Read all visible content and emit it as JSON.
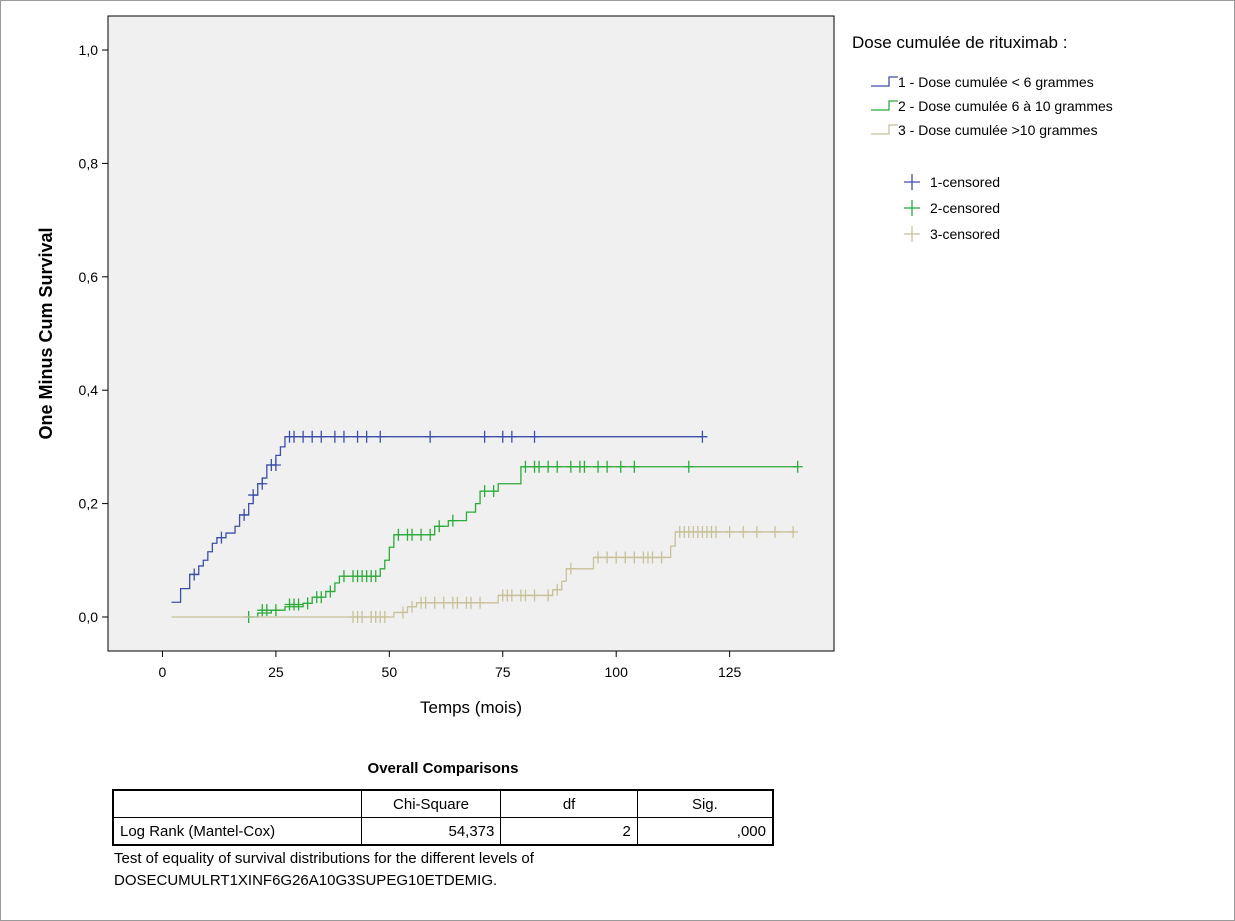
{
  "chart_data": {
    "type": "line",
    "step": true,
    "xlabel": "Temps (mois)",
    "ylabel": "One Minus Cum Survival",
    "xlim": [
      -12,
      148
    ],
    "ylim": [
      -0.06,
      1.06
    ],
    "xticks": [
      0,
      25,
      50,
      75,
      100,
      125
    ],
    "yticks": [
      0.0,
      0.2,
      0.4,
      0.6,
      0.8,
      1.0
    ],
    "xtick_labels": [
      "0",
      "25",
      "50",
      "75",
      "100",
      "125"
    ],
    "ytick_labels": [
      "0,0",
      "0,2",
      "0,4",
      "0,6",
      "0,8",
      "1,0"
    ],
    "plot_background": "#f0f0f0",
    "grid": false,
    "legend": {
      "title": "Dose cumulée de rituximab :",
      "placement": "right",
      "entries": [
        "1 - Dose cumulée < 6 grammes",
        "2 - Dose cumulée 6 à 10 grammes",
        "3 - Dose cumulée >10 grammes"
      ],
      "censored_entries": [
        "1-censored",
        "2-censored",
        "3-censored"
      ]
    },
    "series": [
      {
        "name": "1 - Dose cumulée < 6 grammes",
        "censored_name": "1-censored",
        "color": "#3c4fa8",
        "steps": [
          [
            2,
            0.026
          ],
          [
            4,
            0.05
          ],
          [
            6,
            0.075
          ],
          [
            8,
            0.09
          ],
          [
            9,
            0.1
          ],
          [
            10,
            0.115
          ],
          [
            11,
            0.13
          ],
          [
            12,
            0.14
          ],
          [
            14,
            0.148
          ],
          [
            16,
            0.16
          ],
          [
            17,
            0.18
          ],
          [
            19,
            0.2
          ],
          [
            20,
            0.215
          ],
          [
            21,
            0.235
          ],
          [
            22,
            0.245
          ],
          [
            23,
            0.268
          ],
          [
            25,
            0.285
          ],
          [
            26,
            0.3
          ],
          [
            27,
            0.318
          ],
          [
            119,
            0.318
          ]
        ],
        "censored": [
          [
            7,
            0.075
          ],
          [
            13,
            0.14
          ],
          [
            18,
            0.18
          ],
          [
            20,
            0.215
          ],
          [
            22,
            0.235
          ],
          [
            24,
            0.268
          ],
          [
            25,
            0.268
          ],
          [
            28,
            0.318
          ],
          [
            29,
            0.318
          ],
          [
            31,
            0.318
          ],
          [
            33,
            0.318
          ],
          [
            35,
            0.318
          ],
          [
            38,
            0.318
          ],
          [
            40,
            0.318
          ],
          [
            43,
            0.318
          ],
          [
            45,
            0.318
          ],
          [
            48,
            0.318
          ],
          [
            59,
            0.318
          ],
          [
            71,
            0.318
          ],
          [
            75,
            0.318
          ],
          [
            77,
            0.318
          ],
          [
            82,
            0.318
          ],
          [
            119,
            0.318
          ]
        ]
      },
      {
        "name": "2 - Dose cumulée 6 à 10 grammes",
        "censored_name": "2-censored",
        "color": "#2bab3a",
        "steps": [
          [
            19,
            0.0
          ],
          [
            21,
            0.007
          ],
          [
            24,
            0.012
          ],
          [
            27,
            0.018
          ],
          [
            31,
            0.024
          ],
          [
            33,
            0.035
          ],
          [
            36,
            0.045
          ],
          [
            38,
            0.06
          ],
          [
            39,
            0.072
          ],
          [
            48,
            0.085
          ],
          [
            49,
            0.1
          ],
          [
            50,
            0.123
          ],
          [
            51,
            0.145
          ],
          [
            60,
            0.16
          ],
          [
            63,
            0.17
          ],
          [
            67,
            0.185
          ],
          [
            69,
            0.2
          ],
          [
            70,
            0.222
          ],
          [
            74,
            0.235
          ],
          [
            79,
            0.265
          ],
          [
            140,
            0.265
          ]
        ],
        "censored": [
          [
            19,
            0.0
          ],
          [
            22,
            0.012
          ],
          [
            23,
            0.012
          ],
          [
            25,
            0.012
          ],
          [
            28,
            0.022
          ],
          [
            29,
            0.022
          ],
          [
            30,
            0.022
          ],
          [
            32,
            0.024
          ],
          [
            34,
            0.035
          ],
          [
            35,
            0.035
          ],
          [
            37,
            0.045
          ],
          [
            40,
            0.072
          ],
          [
            42,
            0.072
          ],
          [
            43,
            0.072
          ],
          [
            44,
            0.072
          ],
          [
            45,
            0.072
          ],
          [
            46,
            0.072
          ],
          [
            47,
            0.072
          ],
          [
            52,
            0.145
          ],
          [
            54,
            0.145
          ],
          [
            55,
            0.145
          ],
          [
            57,
            0.145
          ],
          [
            59,
            0.145
          ],
          [
            61,
            0.16
          ],
          [
            64,
            0.17
          ],
          [
            71,
            0.222
          ],
          [
            73,
            0.222
          ],
          [
            80,
            0.265
          ],
          [
            82,
            0.265
          ],
          [
            83,
            0.265
          ],
          [
            85,
            0.265
          ],
          [
            87,
            0.265
          ],
          [
            90,
            0.265
          ],
          [
            92,
            0.265
          ],
          [
            93,
            0.265
          ],
          [
            96,
            0.265
          ],
          [
            98,
            0.265
          ],
          [
            101,
            0.265
          ],
          [
            104,
            0.265
          ],
          [
            116,
            0.265
          ],
          [
            140,
            0.265
          ]
        ]
      },
      {
        "name": "3 - Dose cumulée >10 grammes",
        "censored_name": "3-censored",
        "color": "#c8c19a",
        "steps": [
          [
            2,
            0.0
          ],
          [
            51,
            0.008
          ],
          [
            54,
            0.018
          ],
          [
            56,
            0.025
          ],
          [
            74,
            0.038
          ],
          [
            86,
            0.048
          ],
          [
            88,
            0.063
          ],
          [
            89,
            0.085
          ],
          [
            95,
            0.105
          ],
          [
            112,
            0.125
          ],
          [
            113,
            0.15
          ],
          [
            139,
            0.15
          ]
        ],
        "censored": [
          [
            42,
            0.0
          ],
          [
            43,
            0.0
          ],
          [
            44,
            0.0
          ],
          [
            46,
            0.0
          ],
          [
            47,
            0.0
          ],
          [
            48,
            0.0
          ],
          [
            49,
            0.0
          ],
          [
            53,
            0.008
          ],
          [
            55,
            0.018
          ],
          [
            57,
            0.025
          ],
          [
            58,
            0.025
          ],
          [
            60,
            0.025
          ],
          [
            62,
            0.025
          ],
          [
            64,
            0.025
          ],
          [
            65,
            0.025
          ],
          [
            67,
            0.025
          ],
          [
            68,
            0.025
          ],
          [
            70,
            0.025
          ],
          [
            75,
            0.038
          ],
          [
            76,
            0.038
          ],
          [
            77,
            0.038
          ],
          [
            79,
            0.038
          ],
          [
            80,
            0.038
          ],
          [
            82,
            0.038
          ],
          [
            85,
            0.038
          ],
          [
            87,
            0.048
          ],
          [
            90,
            0.085
          ],
          [
            96,
            0.105
          ],
          [
            98,
            0.105
          ],
          [
            100,
            0.105
          ],
          [
            102,
            0.105
          ],
          [
            104,
            0.105
          ],
          [
            106,
            0.105
          ],
          [
            107,
            0.105
          ],
          [
            108,
            0.105
          ],
          [
            110,
            0.105
          ],
          [
            114,
            0.15
          ],
          [
            115,
            0.15
          ],
          [
            116,
            0.15
          ],
          [
            117,
            0.15
          ],
          [
            118,
            0.15
          ],
          [
            119,
            0.15
          ],
          [
            120,
            0.15
          ],
          [
            121,
            0.15
          ],
          [
            122,
            0.15
          ],
          [
            125,
            0.15
          ],
          [
            128,
            0.15
          ],
          [
            131,
            0.15
          ],
          [
            135,
            0.15
          ],
          [
            139,
            0.15
          ]
        ]
      }
    ]
  },
  "comparisons": {
    "title": "Overall Comparisons",
    "headers": [
      "",
      "Chi-Square",
      "df",
      "Sig."
    ],
    "rows": [
      {
        "label": "Log Rank (Mantel-Cox)",
        "chi_square": "54,373",
        "df": "2",
        "sig": ",000"
      }
    ],
    "footnote_line1": "Test of equality of survival distributions for the different levels of",
    "footnote_line2": "DOSECUMULRT1XINF6G26A10G3SUPEG10ETDEMIG."
  }
}
